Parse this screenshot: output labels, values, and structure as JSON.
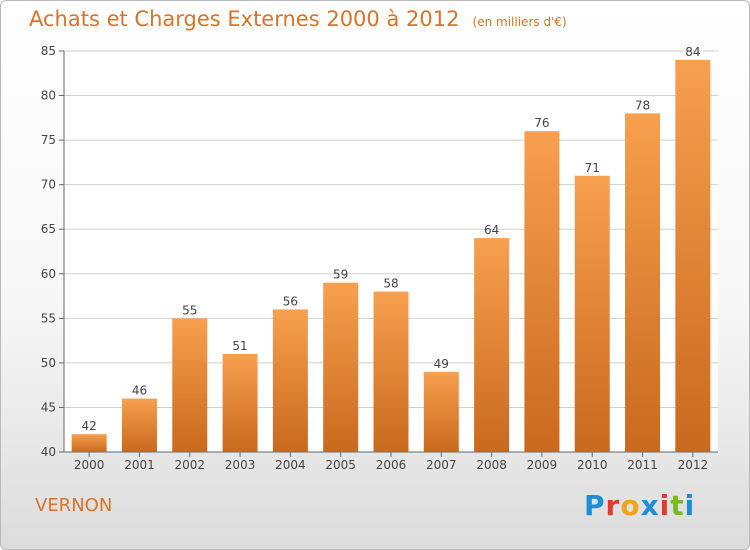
{
  "header": {
    "title": "Achats et Charges Externes 2000 à 2012",
    "unit": "(en milliers d'€)"
  },
  "footer": {
    "city": "VERNON",
    "brand": "Proxiti"
  },
  "colors": {
    "accent": "#d8742a",
    "bar_top": "#f7a04f",
    "bar_bottom": "#c9691e"
  },
  "chart_data": {
    "type": "bar",
    "title": "Achats et Charges Externes 2000 à 2012",
    "xlabel": "",
    "ylabel": "",
    "categories": [
      "2000",
      "2001",
      "2002",
      "2003",
      "2004",
      "2005",
      "2006",
      "2007",
      "2008",
      "2009",
      "2010",
      "2011",
      "2012"
    ],
    "values": [
      42,
      46,
      55,
      51,
      56,
      59,
      58,
      49,
      64,
      76,
      71,
      78,
      84
    ],
    "ylim": [
      40,
      85
    ],
    "yticks": [
      40,
      45,
      50,
      55,
      60,
      65,
      70,
      75,
      80,
      85
    ],
    "grid": true,
    "data_labels": true
  }
}
